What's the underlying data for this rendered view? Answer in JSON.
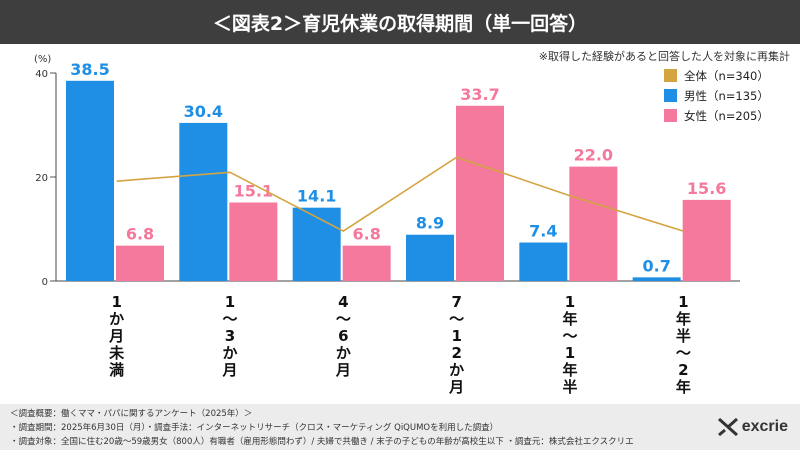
{
  "title": "＜図表2＞育児休業の取得期間（単一回答）",
  "note": "※取得した経験があると回答した人を対象に再集計",
  "colors": {
    "all": "#d4a441",
    "male": "#1f8fe6",
    "female": "#f5799c",
    "header": "#3e3e3e"
  },
  "chart_data": {
    "type": "bar",
    "title": "育児休業の取得期間",
    "ylabel": "(%)",
    "ylim": [
      0,
      40
    ],
    "yticks": [
      "0",
      "20",
      "40"
    ],
    "categories": [
      "1か月未満",
      "1～3か月",
      "4～6か月",
      "7～12か月",
      "1年～1年半",
      "1年半～2年"
    ],
    "category_lines": [
      [
        "1",
        "か",
        "月",
        "未",
        "満"
      ],
      [
        "1",
        "～",
        "3",
        "か",
        "月"
      ],
      [
        "4",
        "～",
        "6",
        "か",
        "月"
      ],
      [
        "7",
        "～",
        "1",
        "2",
        "か",
        "月"
      ],
      [
        "1",
        "年",
        "～",
        "1",
        "年",
        "半"
      ],
      [
        "1",
        "年",
        "半",
        "～",
        "2",
        "年"
      ]
    ],
    "series": [
      {
        "name": "男性",
        "legend": "男性（n=135）",
        "type": "bar",
        "values": [
          38.5,
          30.4,
          14.1,
          8.9,
          7.4,
          0.7
        ],
        "labels": [
          "38.5",
          "30.4",
          "14.1",
          "8.9",
          "7.4",
          "0.7"
        ]
      },
      {
        "name": "女性",
        "legend": "女性（n=205）",
        "type": "bar",
        "values": [
          6.8,
          15.1,
          6.8,
          33.7,
          22.0,
          15.6
        ],
        "labels": [
          "6.8",
          "15.1",
          "6.8",
          "33.7",
          "22.0",
          "15.6"
        ]
      },
      {
        "name": "全体",
        "legend": "全体（n=340）",
        "type": "line",
        "values": [
          19.2,
          20.9,
          9.6,
          23.8,
          16.4,
          9.6
        ]
      }
    ],
    "legend_position": "top-right"
  },
  "footer": {
    "line1": "＜調査概要：働くママ・パパに関するアンケート（2025年）＞",
    "line2": "・調査期間：2025年6月30日（月）・調査手法：インターネットリサーチ（クロス・マーケティング QiQUMOを利用した調査）",
    "line3": "・調査対象：全国に住む20歳～59歳男女（800人）有職者（雇用形態問わず）/ 夫婦で共働き / 末子の子どもの年齢が高校生以下 ・調査元：株式会社エクスクリエ",
    "brand": "excrie"
  }
}
